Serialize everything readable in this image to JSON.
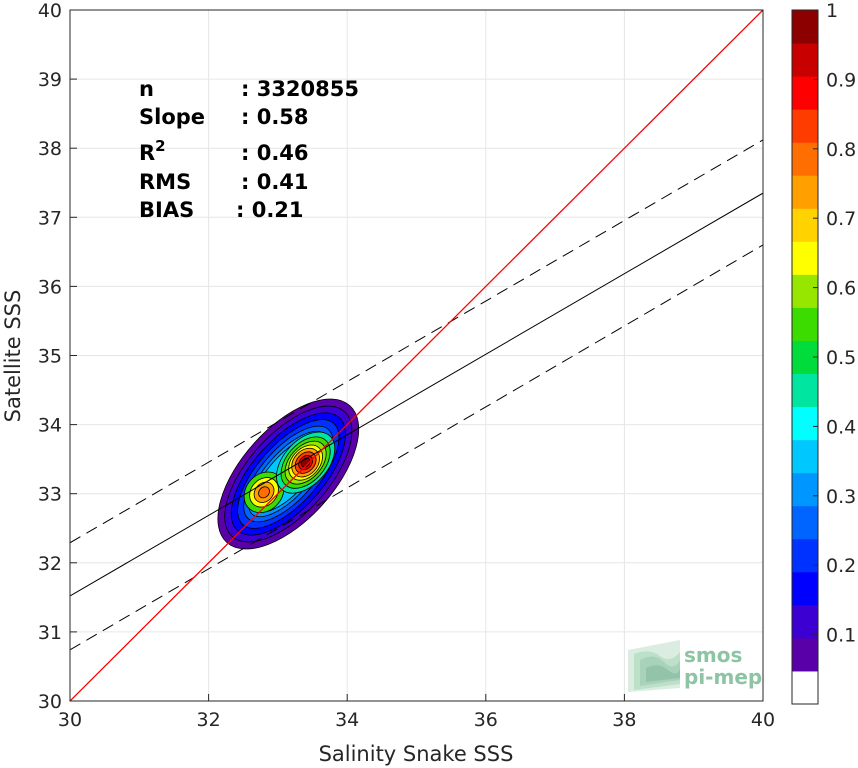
{
  "chart_data": {
    "type": "scatter",
    "subtype": "density-contour",
    "xlabel": "Salinity Snake SSS",
    "ylabel": "Satellite SSS",
    "xlim": [
      30,
      40
    ],
    "ylim": [
      30,
      40
    ],
    "xticks": [
      "30",
      "32",
      "34",
      "36",
      "38",
      "40"
    ],
    "yticks": [
      "30",
      "31",
      "32",
      "33",
      "34",
      "35",
      "36",
      "37",
      "38",
      "39",
      "40"
    ],
    "grid": true,
    "stats": [
      {
        "label": "n",
        "value": ": 3320855"
      },
      {
        "label": "Slope",
        "value": ": 0.58"
      },
      {
        "label": "R",
        "sup": "2",
        "value": ": 0.46"
      },
      {
        "label": "RMS",
        "value": ": 0.41"
      },
      {
        "label": "BIAS",
        "value": ": 0.21"
      }
    ],
    "identity_line": {
      "color": "#ff0000",
      "from": [
        30,
        30
      ],
      "to": [
        40,
        40
      ]
    },
    "regression_line": {
      "color": "#000000",
      "from": [
        30,
        31.52
      ],
      "to": [
        40,
        37.35
      ]
    },
    "rms_band_upper": {
      "color": "#000000",
      "style": "dashed",
      "from": [
        30,
        32.29
      ],
      "to": [
        40,
        38.12
      ]
    },
    "rms_band_lower": {
      "color": "#000000",
      "style": "dashed",
      "from": [
        30,
        30.74
      ],
      "to": [
        40,
        36.6
      ]
    },
    "density_peaks": [
      {
        "x": 33.4,
        "y": 33.45,
        "level": 1.0
      },
      {
        "x": 32.8,
        "y": 33.02,
        "level": 0.75
      }
    ],
    "colorbar": {
      "ticks": [
        "0.1",
        "0.2",
        "0.3",
        "0.4",
        "0.5",
        "0.6",
        "0.7",
        "0.8",
        "0.9",
        "1"
      ],
      "levels": [
        0,
        0.05,
        0.1,
        0.15,
        0.2,
        0.25,
        0.3,
        0.35,
        0.4,
        0.45,
        0.5,
        0.55,
        0.6,
        0.65,
        0.7,
        0.75,
        0.8,
        0.85,
        0.9,
        0.95,
        1.0
      ],
      "colors": [
        "#ffffff",
        "#5a00a8",
        "#3c00d2",
        "#0000ff",
        "#0032ff",
        "#0064ff",
        "#0096ff",
        "#00c8ff",
        "#00ffff",
        "#00e6a0",
        "#00dc3c",
        "#3cdc00",
        "#96e600",
        "#ffff00",
        "#ffd200",
        "#ffa000",
        "#ff6e00",
        "#ff3c00",
        "#ff0000",
        "#c80000",
        "#8c0000"
      ]
    }
  },
  "logo": {
    "line1": "smos",
    "line2": "pi-mep"
  }
}
